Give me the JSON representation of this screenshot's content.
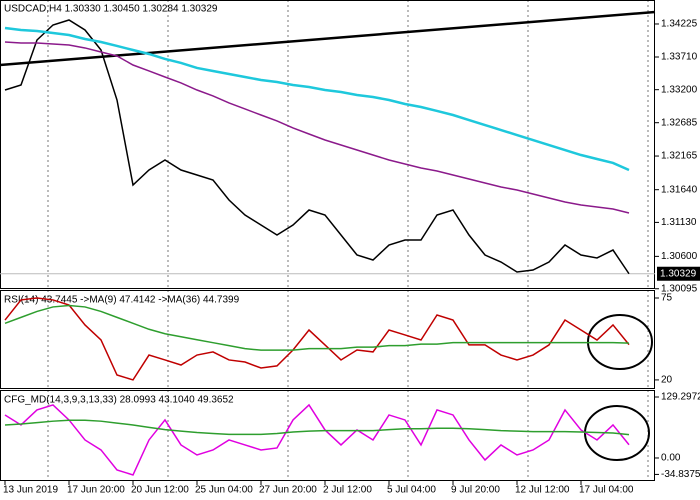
{
  "chart_data": [
    {
      "type": "line",
      "title": "USDCAD,H4  1.30330 1.30450 1.30284 1.30329",
      "categories": [
        "13 Jun 2019",
        null,
        null,
        null,
        "17 Jun 20:00",
        null,
        null,
        null,
        "20 Jun 12:00",
        null,
        null,
        null,
        "25 Jun 04:00",
        null,
        null,
        null,
        "27 Jun 20:00",
        null,
        null,
        null,
        "2 Jul 12:00",
        null,
        null,
        null,
        "5 Jul 04:00",
        null,
        null,
        null,
        "9 Jul 20:00",
        null,
        null,
        null,
        "12 Jul 12:00",
        null,
        null,
        null,
        "17 Jul 04:00",
        null,
        null,
        null
      ],
      "series": [
        {
          "color": "#000000",
          "values": [
            1.33195,
            1.33273,
            1.33975,
            1.34209,
            1.34287,
            1.34131,
            1.33819,
            1.33039,
            1.31713,
            1.31947,
            1.32103,
            1.31947,
            1.31869,
            1.31791,
            1.31479,
            1.31245,
            1.31089,
            1.30933,
            1.31089,
            1.31323,
            1.31245,
            1.30933,
            1.30621,
            1.30543,
            1.30777,
            1.30855,
            1.30855,
            1.31245,
            1.31323,
            1.30933,
            1.30621,
            1.30512,
            1.30356,
            1.30387,
            1.30512,
            1.30777,
            1.30621,
            1.30575,
            1.30699,
            1.30329
          ]
        },
        {
          "color": "#1ec8dc",
          "values": [
            1.34163,
            1.34131,
            1.34116,
            1.34085,
            1.34053,
            1.33991,
            1.33944,
            1.33882,
            1.33819,
            1.33757,
            1.33679,
            1.33617,
            1.33539,
            1.33492,
            1.33445,
            1.33398,
            1.33351,
            1.3332,
            1.33273,
            1.33242,
            1.33195,
            1.33164,
            1.33117,
            1.33086,
            1.33039,
            1.32977,
            1.3293,
            1.32868,
            1.32805,
            1.32727,
            1.32649,
            1.32571,
            1.32493,
            1.32415,
            1.32337,
            1.32259,
            1.32181,
            1.32119,
            1.32057,
            1.31947
          ]
        },
        {
          "color": "#8b1a8b",
          "values": [
            1.33944,
            1.33929,
            1.33929,
            1.33913,
            1.33897,
            1.33851,
            1.33788,
            1.33726,
            1.33585,
            1.33492,
            1.33398,
            1.33305,
            1.33195,
            1.33102,
            1.32993,
            1.32899,
            1.32805,
            1.32712,
            1.32603,
            1.32509,
            1.32415,
            1.32337,
            1.32259,
            1.32181,
            1.32103,
            1.32041,
            1.31979,
            1.31932,
            1.31869,
            1.31807,
            1.31745,
            1.31682,
            1.31635,
            1.31573,
            1.31511,
            1.31448,
            1.31401,
            1.3137,
            1.31339,
            1.31277
          ]
        }
      ],
      "trend_line": {
        "color": "#000000",
        "values": [
          1.33585,
          1.34412
        ]
      },
      "current_price": 1.30329,
      "ylim": [
        1.30091,
        1.34599
      ],
      "yticks": [
        1.34225,
        {
          "value": 1.3371,
          "label": "1.33710"
        },
        {
          "value": 1.332,
          "label": "1.33200"
        },
        1.32685,
        1.32165,
        {
          "value": 1.3164,
          "label": "1.31640"
        },
        {
          "value": 1.3113,
          "label": "1.31130"
        },
        {
          "value": 1.306,
          "label": "1.30600"
        },
        1.30095
      ]
    },
    {
      "type": "line",
      "title": "RSI(14) 43.7445 ->MA(9) 47.4142 ->MA(36) 44.7399",
      "series": [
        {
          "color": "#c00000",
          "values": [
            60.2,
            73.7,
            75.0,
            73.7,
            70.3,
            56.9,
            46.8,
            23.3,
            20.0,
            36.7,
            33.4,
            30.0,
            36.7,
            38.8,
            33.4,
            32.0,
            28.0,
            29.4,
            40.1,
            53.5,
            43.5,
            33.4,
            40.1,
            38.8,
            53.5,
            50.2,
            46.8,
            63.6,
            60.2,
            43.5,
            43.5,
            36.7,
            33.4,
            36.7,
            43.5,
            60.2,
            53.5,
            46.8,
            56.9,
            43.7
          ]
        },
        {
          "color": "#2e9e2e",
          "values": [
            58,
            62,
            66,
            69,
            70,
            69,
            66,
            62,
            58,
            54,
            51,
            49,
            47,
            45,
            43,
            41,
            40,
            40,
            40,
            41,
            41,
            41,
            42,
            42,
            43,
            43,
            44,
            44,
            45,
            45,
            45,
            45,
            45,
            45,
            45,
            45,
            45,
            45,
            45,
            44.7
          ]
        }
      ],
      "ylim": [
        13.9,
        79.7
      ],
      "yticks": [
        75,
        20
      ]
    },
    {
      "type": "line",
      "title": "CFG_MD(14,3,9,3,13,33) 28.0993 43.1040 49.3652",
      "series": [
        {
          "color": "#e000e0",
          "values": [
            91.2,
            70.0,
            101.8,
            112.4,
            80.6,
            38.2,
            17.0,
            -25.4,
            -36.0,
            38.2,
            80.6,
            27.6,
            6.4,
            17.0,
            38.2,
            27.6,
            17.0,
            21.2,
            80.6,
            112.4,
            59.4,
            27.6,
            59.4,
            38.2,
            91.2,
            80.6,
            27.6,
            101.8,
            91.2,
            38.2,
            -4.2,
            27.6,
            6.4,
            17.0,
            38.2,
            101.8,
            59.4,
            38.2,
            70.0,
            28.1
          ]
        },
        {
          "color": "#2e9e2e",
          "values": [
            70,
            72,
            75,
            78,
            80,
            80,
            78,
            74,
            70,
            65,
            60,
            57,
            54,
            52,
            50,
            50,
            50,
            52,
            55,
            57,
            58,
            58,
            58,
            58,
            60,
            62,
            62,
            63,
            63,
            62,
            60,
            58,
            57,
            56,
            56,
            56,
            55,
            54,
            53,
            49.4
          ]
        }
      ],
      "ylim": [
        -48.8,
        142.0
      ],
      "yticks": [
        129.2972,
        {
          "value": 0,
          "label": "0.00"
        },
        -34.8375
      ]
    }
  ]
}
